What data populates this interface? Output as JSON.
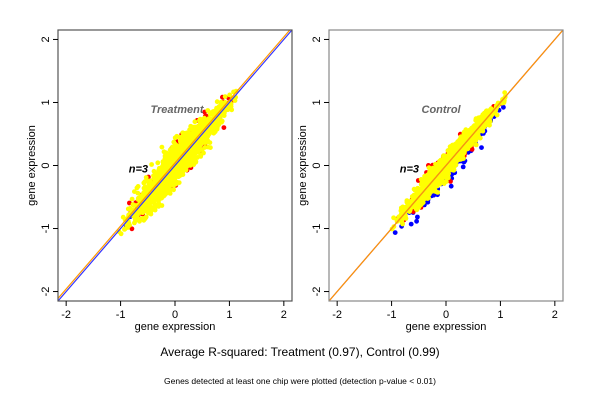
{
  "chart_data": [
    {
      "type": "scatter",
      "title": "Treatment",
      "annotation": "n=3",
      "xlabel": "gene expression",
      "ylabel": "gene expression",
      "xlim": [
        -2.15,
        2.15
      ],
      "ylim": [
        -2.15,
        2.15
      ],
      "xticks": [
        "-2",
        "-1",
        "0",
        "1",
        "2"
      ],
      "yticks": [
        "-2",
        "-1",
        "0",
        "1",
        "2"
      ],
      "grid": false,
      "reference_lines": [
        {
          "name": "identity",
          "color": "#3333ff",
          "slope": 1.0,
          "intercept": 0.0
        },
        {
          "name": "fit",
          "color": "#ff9900",
          "slope": 1.0,
          "intercept": 0.04
        }
      ],
      "series": [
        {
          "name": "blue",
          "color": "#0000ff",
          "extent": {
            "x": [
              -1.1,
              1.25
            ],
            "spread": 0.1
          }
        },
        {
          "name": "red",
          "color": "#ff0000",
          "extent": {
            "x": [
              -1.05,
              1.2
            ],
            "spread": 0.3
          }
        },
        {
          "name": "yellow",
          "color": "#ffff00",
          "extent": {
            "x": [
              -1.1,
              1.25
            ],
            "spread": 0.28
          }
        }
      ]
    },
    {
      "type": "scatter",
      "title": "Control",
      "annotation": "n=3",
      "xlabel": "gene expression",
      "ylabel": "gene expression",
      "xlim": [
        -2.15,
        2.15
      ],
      "ylim": [
        -2.15,
        2.15
      ],
      "xticks": [
        "-2",
        "-1",
        "0",
        "1",
        "2"
      ],
      "yticks": [
        "-2",
        "-1",
        "0",
        "1",
        "2"
      ],
      "grid": false,
      "reference_lines": [
        {
          "name": "identity",
          "color": "#9933cc",
          "slope": 1.0,
          "intercept": 0.0
        },
        {
          "name": "fit",
          "color": "#ff9900",
          "slope": 1.0,
          "intercept": 0.0
        }
      ],
      "series": [
        {
          "name": "blue",
          "color": "#0000ff",
          "extent": {
            "x": [
              -1.1,
              1.25
            ],
            "spread": 0.22
          }
        },
        {
          "name": "red",
          "color": "#ff0000",
          "extent": {
            "x": [
              -1.1,
              1.2
            ],
            "spread": 0.18
          }
        },
        {
          "name": "yellow",
          "color": "#ffff00",
          "extent": {
            "x": [
              -1.15,
              1.25
            ],
            "spread": 0.16
          }
        }
      ]
    }
  ],
  "footer": {
    "summary": "Average R-squared: Treatment (0.97), Control (0.99)",
    "note": "Genes detected at least one chip were plotted (detection p-value < 0.01)"
  }
}
